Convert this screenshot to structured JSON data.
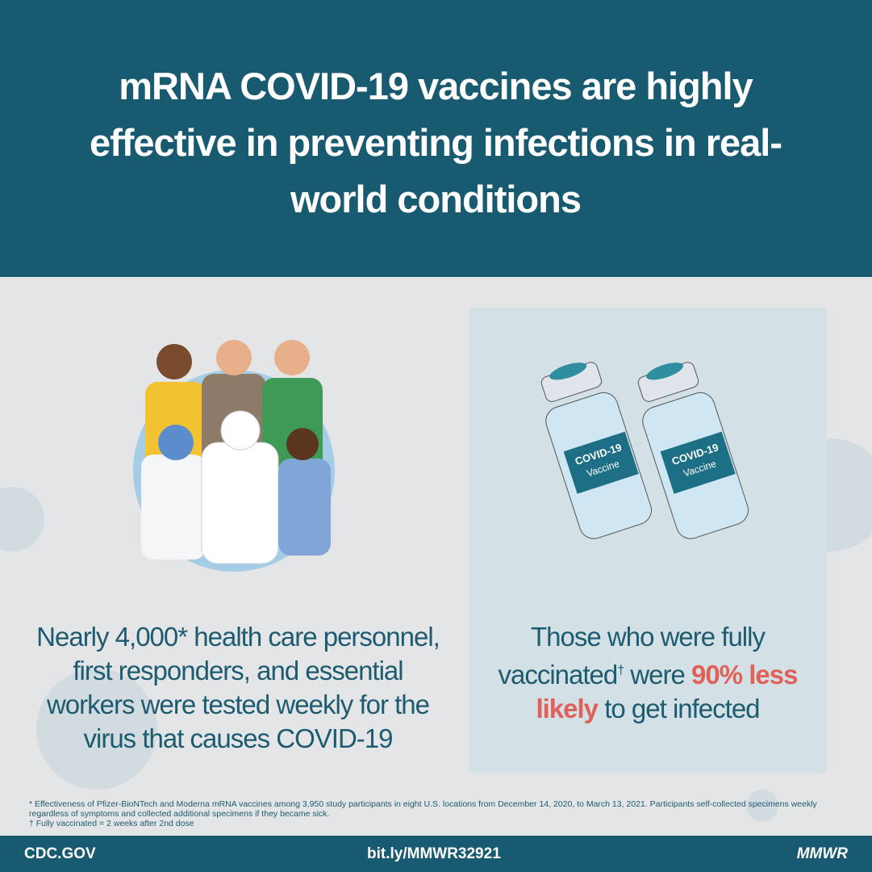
{
  "header": {
    "title": "mRNA COVID-19 vaccines are highly effective in preventing infections in real-world conditions"
  },
  "left": {
    "text": "Nearly 4,000* health care personnel, first responders, and essential workers were tested weekly for the virus that causes COVID-19"
  },
  "right": {
    "parts": [
      "Those who were fully vaccinated",
      "†",
      " were ",
      "90% less likely",
      " to get infected"
    ],
    "vial_label": [
      "COVID-19",
      "Vaccine"
    ]
  },
  "footnotes": [
    "* Effectiveness of Pfizer-BioNTech and Moderna mRNA vaccines among 3,950 study participants in eight U.S. locations from December 14, 2020, to March 13, 2021. Participants self-collected specimens weekly regardless of symptoms and collected additional specimens if they became sick.",
    "† Fully vaccinated = 2 weeks after 2nd dose"
  ],
  "footer": {
    "left": "CDC.GOV",
    "center": "bit.ly/MMWR32921",
    "right": "MMWR"
  }
}
